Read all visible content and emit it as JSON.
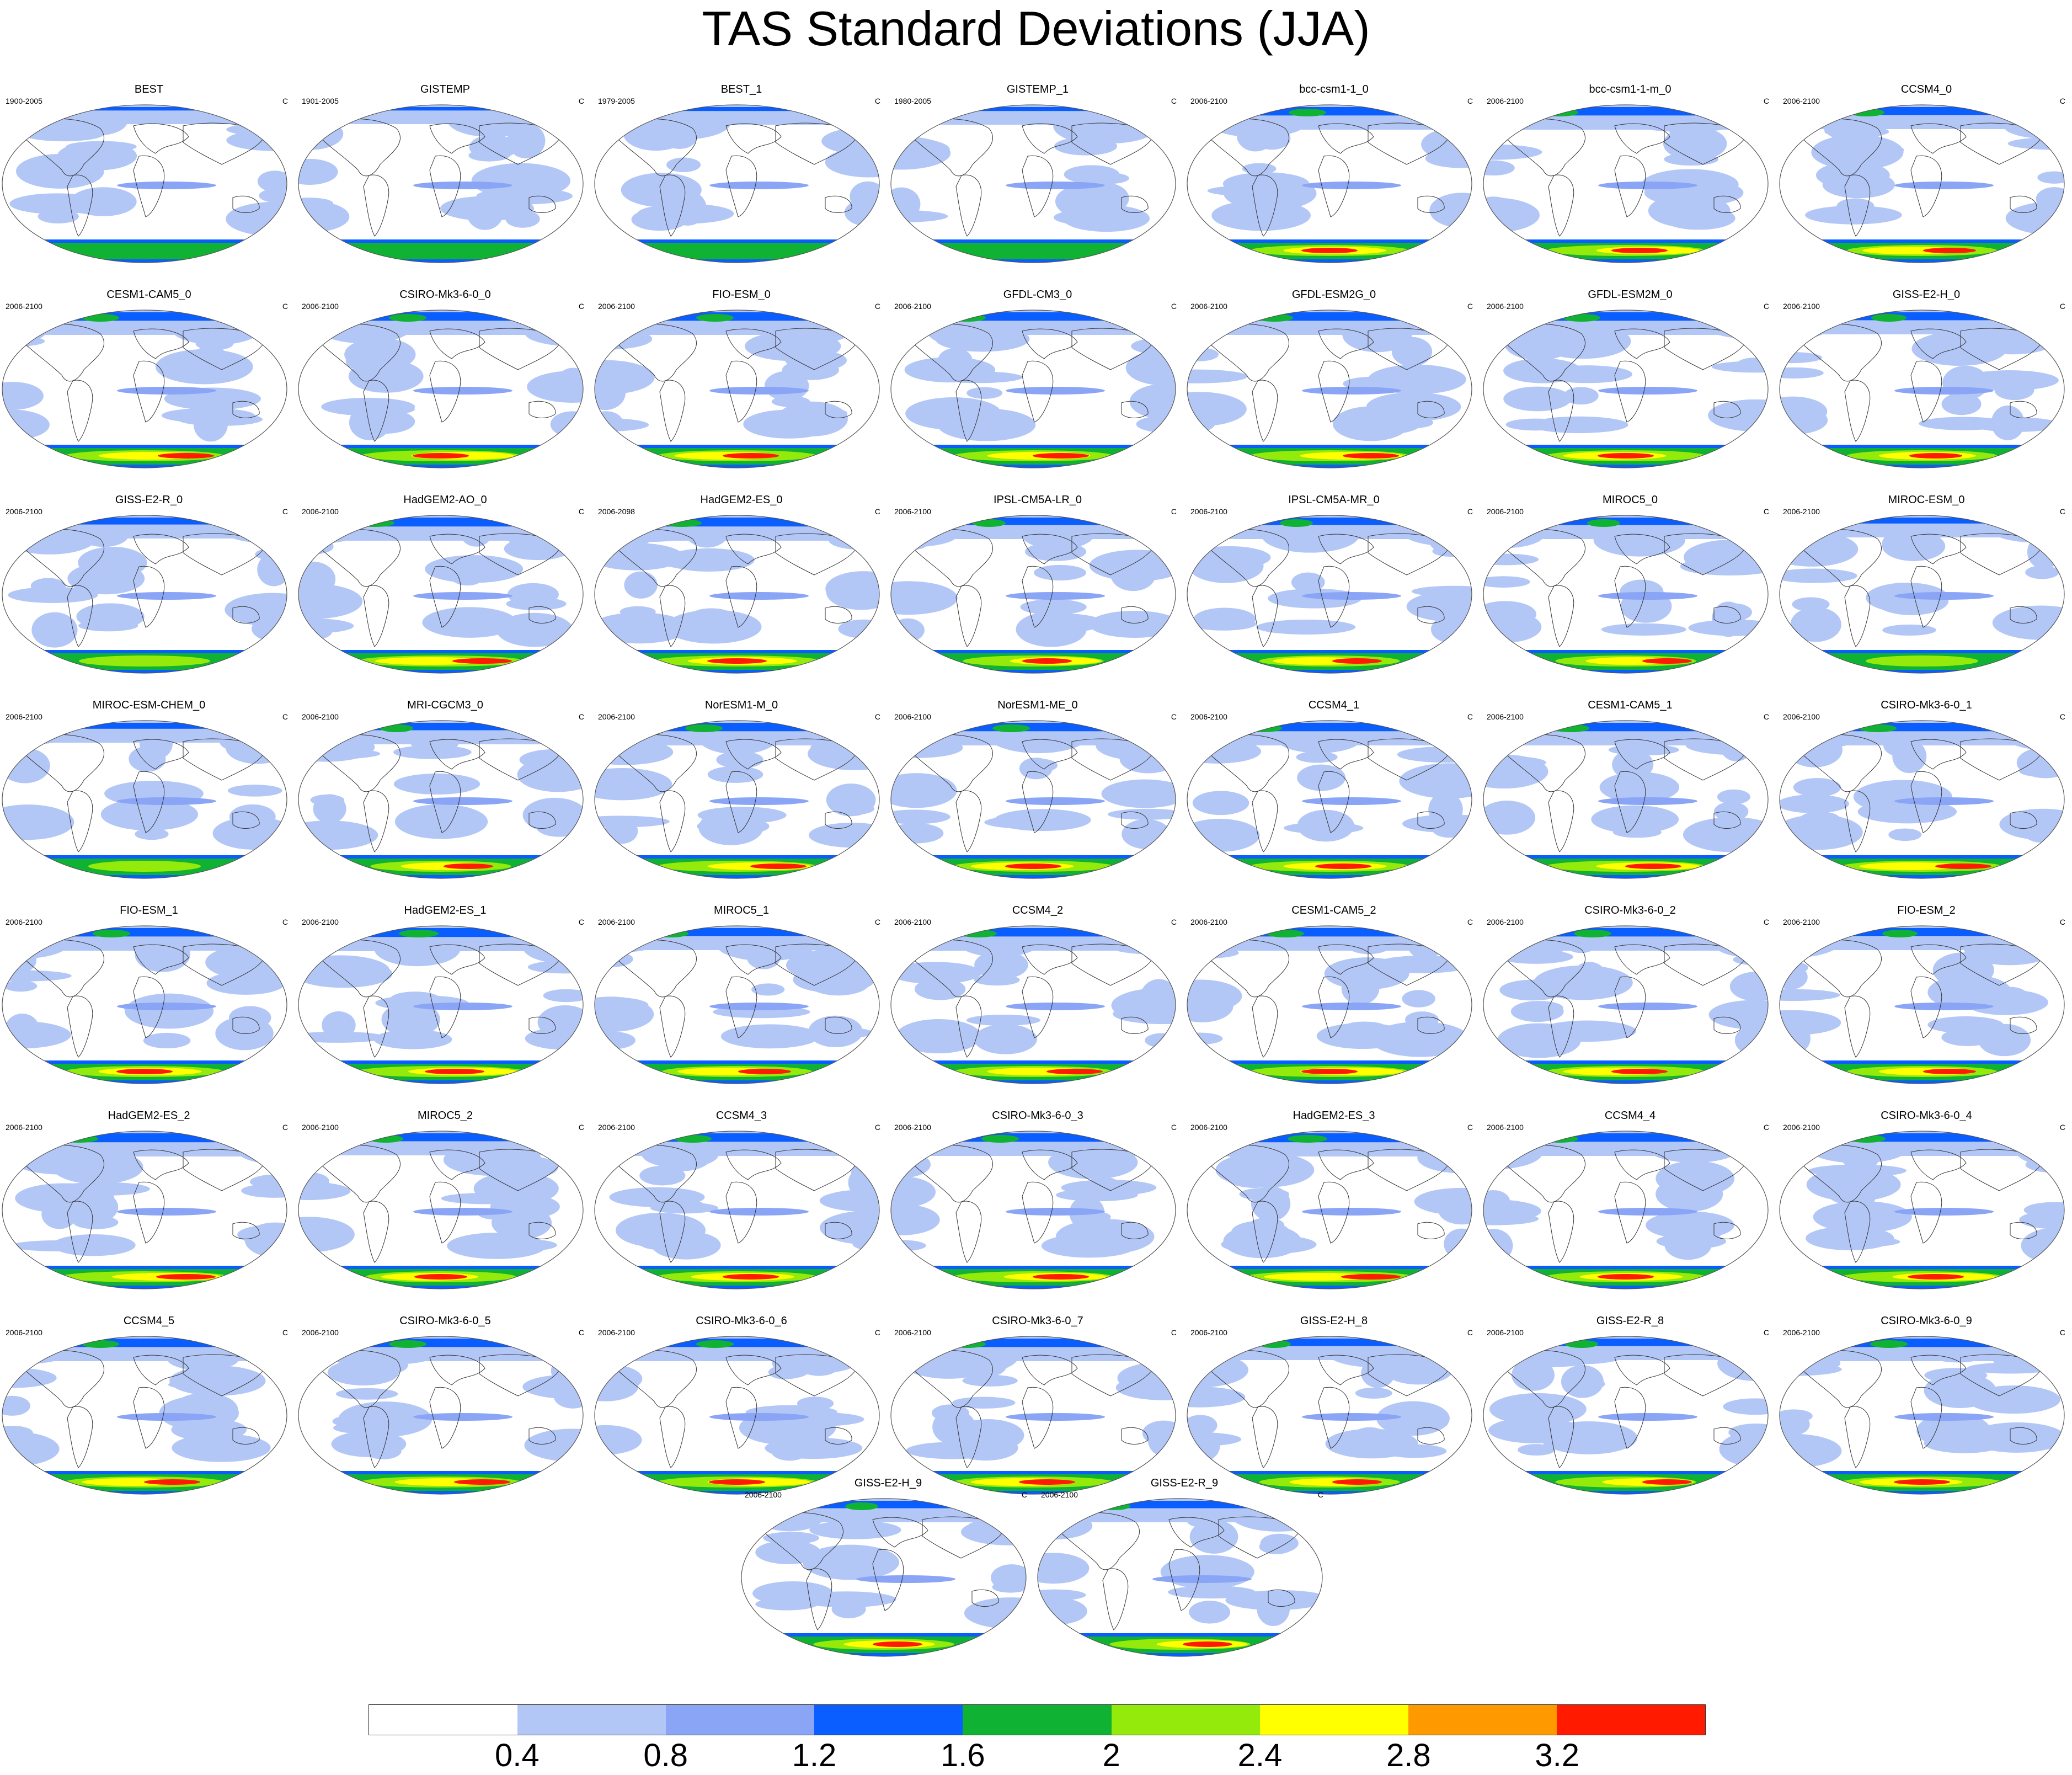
{
  "title": "TAS Standard Deviations (JJA)",
  "units": "C",
  "palette": {
    "land_outline": "#333333",
    "ocean_base": "#ffffff",
    "level_colors": [
      "#ffffff",
      "#b3c7f7",
      "#8aa4f6",
      "#0a5dff",
      "#0fb232",
      "#94ea0b",
      "#ffff00",
      "#ff9900",
      "#ff1a00"
    ]
  },
  "colorbar": {
    "labels": [
      "0.4",
      "0.8",
      "1.2",
      "1.6",
      "2",
      "2.4",
      "2.8",
      "3.2"
    ]
  },
  "panels": [
    {
      "name": "BEST",
      "years": "1900-2005",
      "intensity": 0.35
    },
    {
      "name": "GISTEMP",
      "years": "1901-2005",
      "intensity": 0.35
    },
    {
      "name": "BEST_1",
      "years": "1979-2005",
      "intensity": 0.4
    },
    {
      "name": "GISTEMP_1",
      "years": "1980-2005",
      "intensity": 0.4
    },
    {
      "name": "bcc-csm1-1_0",
      "years": "2006-2100",
      "intensity": 0.85
    },
    {
      "name": "bcc-csm1-1-m_0",
      "years": "2006-2100",
      "intensity": 0.85
    },
    {
      "name": "CCSM4_0",
      "years": "2006-2100",
      "intensity": 0.8
    },
    {
      "name": "CESM1-CAM5_0",
      "years": "2006-2100",
      "intensity": 0.85
    },
    {
      "name": "CSIRO-Mk3-6-0_0",
      "years": "2006-2100",
      "intensity": 0.85
    },
    {
      "name": "FIO-ESM_0",
      "years": "2006-2100",
      "intensity": 0.85
    },
    {
      "name": "GFDL-CM3_0",
      "years": "2006-2100",
      "intensity": 0.85
    },
    {
      "name": "GFDL-ESM2G_0",
      "years": "2006-2100",
      "intensity": 0.85
    },
    {
      "name": "GFDL-ESM2M_0",
      "years": "2006-2100",
      "intensity": 0.85
    },
    {
      "name": "GISS-E2-H_0",
      "years": "2006-2100",
      "intensity": 0.8
    },
    {
      "name": "GISS-E2-R_0",
      "years": "2006-2100",
      "intensity": 0.7
    },
    {
      "name": "HadGEM2-AO_0",
      "years": "2006-2100",
      "intensity": 0.9
    },
    {
      "name": "HadGEM2-ES_0",
      "years": "2006-2098",
      "intensity": 0.9
    },
    {
      "name": "IPSL-CM5A-LR_0",
      "years": "2006-2100",
      "intensity": 0.75
    },
    {
      "name": "IPSL-CM5A-MR_0",
      "years": "2006-2100",
      "intensity": 0.75
    },
    {
      "name": "MIROC5_0",
      "years": "2006-2100",
      "intensity": 0.75
    },
    {
      "name": "MIROC-ESM_0",
      "years": "2006-2100",
      "intensity": 0.6
    },
    {
      "name": "MIROC-ESM-CHEM_0",
      "years": "2006-2100",
      "intensity": 0.6
    },
    {
      "name": "MRI-CGCM3_0",
      "years": "2006-2100",
      "intensity": 0.75
    },
    {
      "name": "NorESM1-M_0",
      "years": "2006-2100",
      "intensity": 0.85
    },
    {
      "name": "NorESM1-ME_0",
      "years": "2006-2100",
      "intensity": 0.85
    },
    {
      "name": "CCSM4_1",
      "years": "2006-2100",
      "intensity": 0.85
    },
    {
      "name": "CESM1-CAM5_1",
      "years": "2006-2100",
      "intensity": 0.85
    },
    {
      "name": "CSIRO-Mk3-6-0_1",
      "years": "2006-2100",
      "intensity": 0.85
    },
    {
      "name": "FIO-ESM_1",
      "years": "2006-2100",
      "intensity": 0.85
    },
    {
      "name": "HadGEM2-ES_1",
      "years": "2006-2100",
      "intensity": 0.9
    },
    {
      "name": "MIROC5_1",
      "years": "2006-2100",
      "intensity": 0.8
    },
    {
      "name": "CCSM4_2",
      "years": "2006-2100",
      "intensity": 0.85
    },
    {
      "name": "CESM1-CAM5_2",
      "years": "2006-2100",
      "intensity": 0.85
    },
    {
      "name": "CSIRO-Mk3-6-0_2",
      "years": "2006-2100",
      "intensity": 0.85
    },
    {
      "name": "FIO-ESM_2",
      "years": "2006-2100",
      "intensity": 0.8
    },
    {
      "name": "HadGEM2-ES_2",
      "years": "2006-2100",
      "intensity": 0.9
    },
    {
      "name": "MIROC5_2",
      "years": "2006-2100",
      "intensity": 0.8
    },
    {
      "name": "CCSM4_3",
      "years": "2006-2100",
      "intensity": 0.85
    },
    {
      "name": "CSIRO-Mk3-6-0_3",
      "years": "2006-2100",
      "intensity": 0.85
    },
    {
      "name": "HadGEM2-ES_3",
      "years": "2006-2100",
      "intensity": 0.9
    },
    {
      "name": "CCSM4_4",
      "years": "2006-2100",
      "intensity": 0.85
    },
    {
      "name": "CSIRO-Mk3-6-0_4",
      "years": "2006-2100",
      "intensity": 0.85
    },
    {
      "name": "CCSM4_5",
      "years": "2006-2100",
      "intensity": 0.85
    },
    {
      "name": "CSIRO-Mk3-6-0_5",
      "years": "2006-2100",
      "intensity": 0.85
    },
    {
      "name": "CSIRO-Mk3-6-0_6",
      "years": "2006-2100",
      "intensity": 0.85
    },
    {
      "name": "CSIRO-Mk3-6-0_7",
      "years": "2006-2100",
      "intensity": 0.85
    },
    {
      "name": "GISS-E2-H_8",
      "years": "2006-2100",
      "intensity": 0.75
    },
    {
      "name": "GISS-E2-R_8",
      "years": "2006-2100",
      "intensity": 0.75
    },
    {
      "name": "CSIRO-Mk3-6-0_9",
      "years": "2006-2100",
      "intensity": 0.85
    },
    {
      "name": "GISS-E2-H_9",
      "years": "2006-2100",
      "intensity": 0.75
    },
    {
      "name": "GISS-E2-R_9",
      "years": "2006-2100",
      "intensity": 0.75
    }
  ]
}
